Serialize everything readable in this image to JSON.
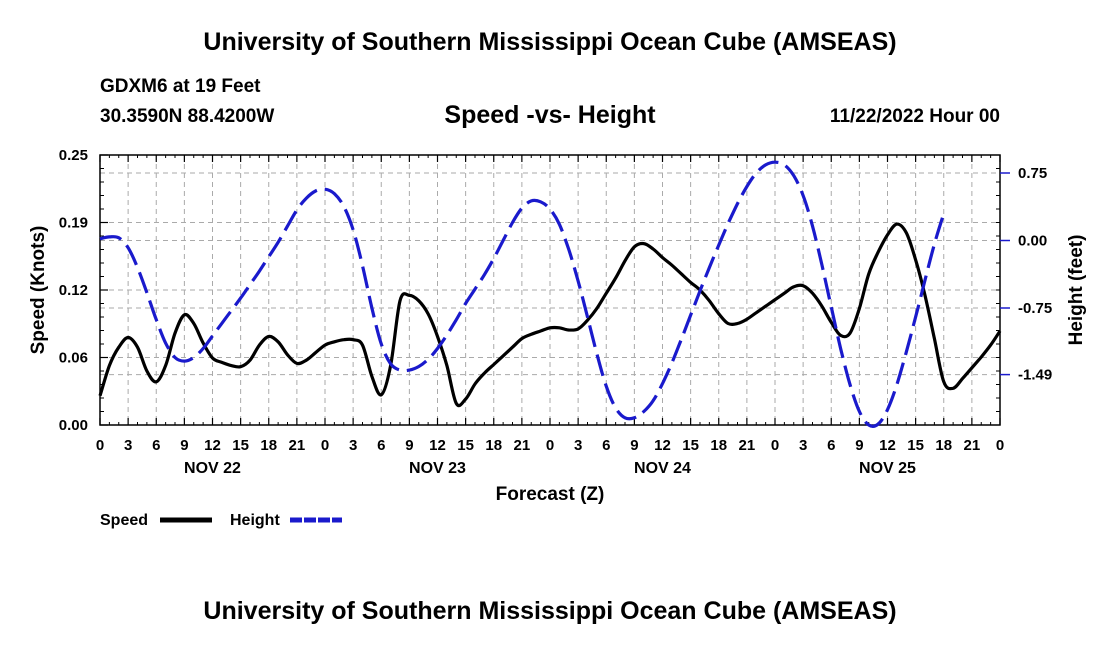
{
  "header": {
    "title": "University of Southern Mississippi Ocean Cube (AMSEAS)",
    "station": "GDXM6 at 19 Feet",
    "coords": "30.3590N  88.4200W",
    "chart_title": "Speed -vs- Height",
    "date_hour": "11/22/2022 Hour 00"
  },
  "footer": {
    "title": "University of Southern Mississippi Ocean Cube (AMSEAS)"
  },
  "colors": {
    "speed": "#000000",
    "height": "#1a1acc",
    "grid": "#aaaaaa"
  },
  "chart_data": {
    "type": "line",
    "xlabel": "Forecast (Z)",
    "ylabel": "Speed (Knots)",
    "y2label": "Height (feet)",
    "xlim": [
      0,
      96
    ],
    "ylim": [
      0,
      0.25
    ],
    "y2lim": [
      -2.05,
      0.95
    ],
    "y_ticks": [
      "0.00",
      "0.06",
      "0.12",
      "0.19",
      "0.25"
    ],
    "y_tick_values": [
      0,
      0.0625,
      0.125,
      0.1875,
      0.25
    ],
    "y2_ticks": [
      "0.75",
      "0.00",
      "-0.75",
      "-1.49"
    ],
    "y2_tick_values": [
      0.75,
      0.0,
      -0.75,
      -1.49
    ],
    "x_tick_labels": [
      "0",
      "3",
      "6",
      "9",
      "12",
      "15",
      "18",
      "21",
      "0",
      "3",
      "6",
      "9",
      "12",
      "15",
      "18",
      "21",
      "0",
      "3",
      "6",
      "9",
      "12",
      "15",
      "18",
      "21",
      "0",
      "3",
      "6",
      "9",
      "12",
      "15",
      "18",
      "21",
      "0"
    ],
    "day_labels": [
      {
        "label": "NOV 22",
        "hour": 12
      },
      {
        "label": "NOV 23",
        "hour": 36
      },
      {
        "label": "NOV 24",
        "hour": 60
      },
      {
        "label": "NOV 25",
        "hour": 84
      }
    ],
    "legend": [
      "Speed",
      "Height"
    ],
    "series": [
      {
        "name": "Speed",
        "axis": "left",
        "style": "solid",
        "points": [
          [
            0,
            0.027
          ],
          [
            1,
            0.055
          ],
          [
            2,
            0.072
          ],
          [
            3,
            0.081
          ],
          [
            4,
            0.072
          ],
          [
            5,
            0.05
          ],
          [
            6,
            0.04
          ],
          [
            7,
            0.055
          ],
          [
            8,
            0.085
          ],
          [
            9,
            0.102
          ],
          [
            10,
            0.094
          ],
          [
            11,
            0.076
          ],
          [
            12,
            0.062
          ],
          [
            13,
            0.058
          ],
          [
            14,
            0.055
          ],
          [
            15,
            0.054
          ],
          [
            16,
            0.06
          ],
          [
            17,
            0.074
          ],
          [
            18,
            0.082
          ],
          [
            19,
            0.077
          ],
          [
            20,
            0.065
          ],
          [
            21,
            0.057
          ],
          [
            22,
            0.06
          ],
          [
            23,
            0.067
          ],
          [
            24,
            0.074
          ],
          [
            25,
            0.077
          ],
          [
            26,
            0.079
          ],
          [
            27,
            0.079
          ],
          [
            28,
            0.074
          ],
          [
            29,
            0.045
          ],
          [
            30,
            0.028
          ],
          [
            31,
            0.055
          ],
          [
            32,
            0.115
          ],
          [
            33,
            0.12
          ],
          [
            34,
            0.115
          ],
          [
            35,
            0.103
          ],
          [
            36,
            0.082
          ],
          [
            37,
            0.055
          ],
          [
            38,
            0.02
          ],
          [
            39,
            0.024
          ],
          [
            40,
            0.038
          ],
          [
            41,
            0.048
          ],
          [
            42,
            0.056
          ],
          [
            43,
            0.064
          ],
          [
            44,
            0.072
          ],
          [
            45,
            0.08
          ],
          [
            46,
            0.084
          ],
          [
            47,
            0.087
          ],
          [
            48,
            0.09
          ],
          [
            49,
            0.09
          ],
          [
            50,
            0.088
          ],
          [
            51,
            0.089
          ],
          [
            52,
            0.097
          ],
          [
            53,
            0.108
          ],
          [
            54,
            0.122
          ],
          [
            55,
            0.136
          ],
          [
            56,
            0.152
          ],
          [
            57,
            0.165
          ],
          [
            58,
            0.168
          ],
          [
            59,
            0.163
          ],
          [
            60,
            0.155
          ],
          [
            61,
            0.148
          ],
          [
            62,
            0.14
          ],
          [
            63,
            0.132
          ],
          [
            64,
            0.125
          ],
          [
            65,
            0.115
          ],
          [
            66,
            0.103
          ],
          [
            67,
            0.094
          ],
          [
            68,
            0.094
          ],
          [
            69,
            0.098
          ],
          [
            70,
            0.104
          ],
          [
            71,
            0.11
          ],
          [
            72,
            0.116
          ],
          [
            73,
            0.122
          ],
          [
            74,
            0.128
          ],
          [
            75,
            0.129
          ],
          [
            76,
            0.122
          ],
          [
            77,
            0.11
          ],
          [
            78,
            0.095
          ],
          [
            79,
            0.083
          ],
          [
            80,
            0.085
          ],
          [
            81,
            0.108
          ],
          [
            82,
            0.14
          ],
          [
            83,
            0.16
          ],
          [
            84,
            0.176
          ],
          [
            85,
            0.186
          ],
          [
            86,
            0.178
          ],
          [
            87,
            0.153
          ],
          [
            88,
            0.12
          ],
          [
            89,
            0.08
          ],
          [
            90,
            0.04
          ],
          [
            91,
            0.034
          ],
          [
            92,
            0.043
          ],
          [
            93,
            0.053
          ],
          [
            94,
            0.063
          ],
          [
            95,
            0.074
          ],
          [
            96,
            0.087
          ]
        ]
      },
      {
        "name": "Height",
        "axis": "right",
        "style": "dashed",
        "points": [
          [
            0,
            0.02
          ],
          [
            1,
            0.04
          ],
          [
            2,
            0.03
          ],
          [
            3,
            -0.08
          ],
          [
            4,
            -0.3
          ],
          [
            5,
            -0.58
          ],
          [
            6,
            -0.88
          ],
          [
            7,
            -1.14
          ],
          [
            8,
            -1.3
          ],
          [
            9,
            -1.34
          ],
          [
            10,
            -1.3
          ],
          [
            11,
            -1.2
          ],
          [
            12,
            -1.06
          ],
          [
            13,
            -0.92
          ],
          [
            14,
            -0.78
          ],
          [
            15,
            -0.64
          ],
          [
            16,
            -0.49
          ],
          [
            17,
            -0.34
          ],
          [
            18,
            -0.18
          ],
          [
            19,
            -0.02
          ],
          [
            20,
            0.16
          ],
          [
            21,
            0.34
          ],
          [
            22,
            0.47
          ],
          [
            23,
            0.55
          ],
          [
            24,
            0.57
          ],
          [
            25,
            0.52
          ],
          [
            26,
            0.38
          ],
          [
            27,
            0.12
          ],
          [
            28,
            -0.28
          ],
          [
            29,
            -0.75
          ],
          [
            30,
            -1.15
          ],
          [
            31,
            -1.37
          ],
          [
            32,
            -1.44
          ],
          [
            33,
            -1.44
          ],
          [
            34,
            -1.4
          ],
          [
            35,
            -1.32
          ],
          [
            36,
            -1.2
          ],
          [
            37,
            -1.05
          ],
          [
            38,
            -0.88
          ],
          [
            39,
            -0.7
          ],
          [
            40,
            -0.54
          ],
          [
            41,
            -0.38
          ],
          [
            42,
            -0.2
          ],
          [
            43,
            0.0
          ],
          [
            44,
            0.2
          ],
          [
            45,
            0.36
          ],
          [
            46,
            0.44
          ],
          [
            47,
            0.43
          ],
          [
            48,
            0.35
          ],
          [
            49,
            0.18
          ],
          [
            50,
            -0.1
          ],
          [
            51,
            -0.45
          ],
          [
            52,
            -0.85
          ],
          [
            53,
            -1.26
          ],
          [
            54,
            -1.62
          ],
          [
            55,
            -1.86
          ],
          [
            56,
            -1.97
          ],
          [
            57,
            -1.97
          ],
          [
            58,
            -1.9
          ],
          [
            59,
            -1.78
          ],
          [
            60,
            -1.59
          ],
          [
            61,
            -1.36
          ],
          [
            62,
            -1.1
          ],
          [
            63,
            -0.83
          ],
          [
            64,
            -0.56
          ],
          [
            65,
            -0.3
          ],
          [
            66,
            -0.05
          ],
          [
            67,
            0.19
          ],
          [
            68,
            0.41
          ],
          [
            69,
            0.6
          ],
          [
            70,
            0.75
          ],
          [
            71,
            0.84
          ],
          [
            72,
            0.87
          ],
          [
            73,
            0.84
          ],
          [
            74,
            0.72
          ],
          [
            75,
            0.5
          ],
          [
            76,
            0.16
          ],
          [
            77,
            -0.27
          ],
          [
            78,
            -0.74
          ],
          [
            79,
            -1.2
          ],
          [
            80,
            -1.6
          ],
          [
            81,
            -1.9
          ],
          [
            82,
            -2.05
          ],
          [
            83,
            -2.04
          ],
          [
            84,
            -1.88
          ],
          [
            85,
            -1.6
          ],
          [
            86,
            -1.24
          ],
          [
            87,
            -0.85
          ],
          [
            88,
            -0.44
          ],
          [
            89,
            -0.04
          ],
          [
            90,
            0.3
          ]
        ]
      }
    ]
  }
}
